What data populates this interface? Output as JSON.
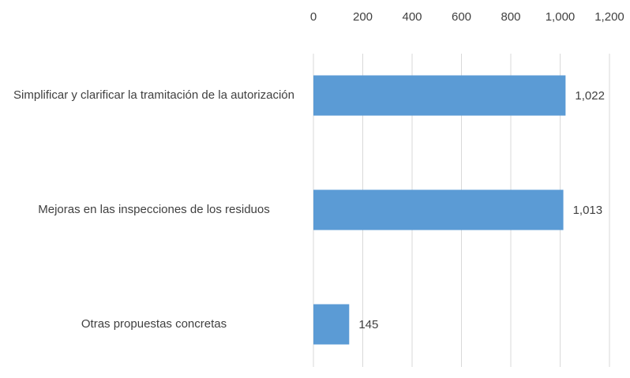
{
  "chart_data": {
    "type": "bar",
    "orientation": "horizontal",
    "categories": [
      "Simplificar y clarificar la tramitación de la autorización",
      "Mejoras en las inspecciones de los residuos",
      "Otras propuestas concretas"
    ],
    "values": [
      1022,
      1013,
      145
    ],
    "value_labels": [
      "1,022",
      "1,013",
      "145"
    ],
    "color": "#5b9bd5",
    "xlim": [
      0,
      1200
    ],
    "xticks": [
      0,
      200,
      400,
      600,
      800,
      {
        "value": 1000,
        "label": "1,000"
      },
      {
        "value": 1200,
        "label": "1,200"
      }
    ],
    "grid": true
  }
}
